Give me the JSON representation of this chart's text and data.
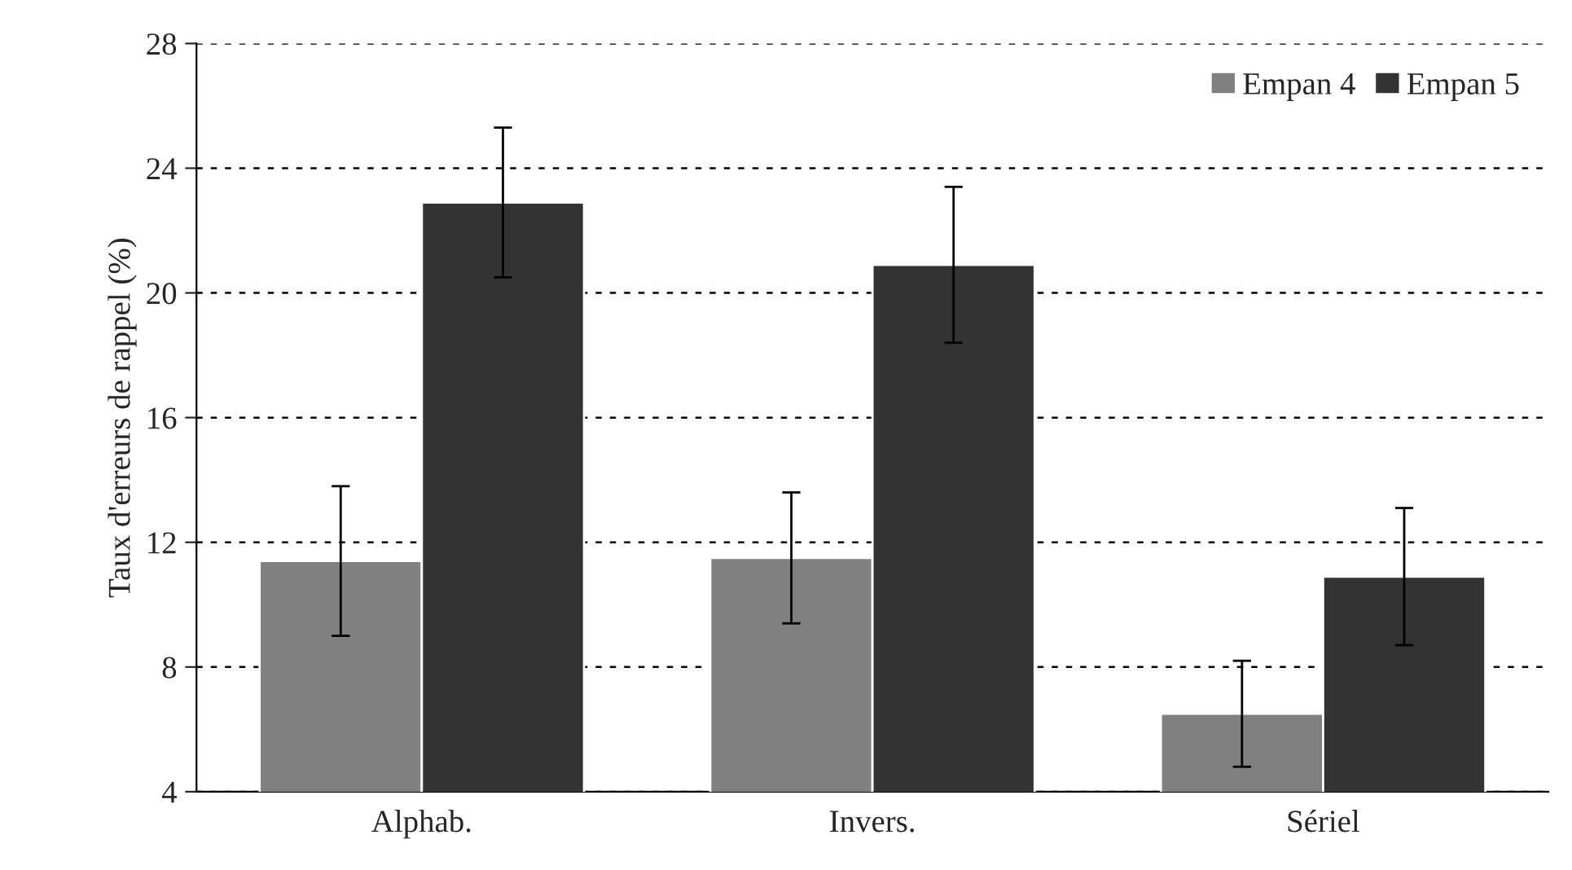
{
  "chart_data": {
    "type": "bar",
    "ylabel": "Taux d'erreurs de rappel (%)",
    "categories": [
      "Alphab.",
      "Invers.",
      "Sériel"
    ],
    "series": [
      {
        "name": "Empan 4",
        "color": "#808080",
        "values": [
          11.4,
          11.5,
          6.5
        ],
        "errors": [
          2.4,
          2.1,
          1.7
        ]
      },
      {
        "name": "Empan 5",
        "color": "#333333",
        "values": [
          22.9,
          20.9,
          10.9
        ],
        "errors": [
          2.4,
          2.5,
          2.2
        ]
      }
    ],
    "ylim": [
      4,
      28
    ],
    "yticks": [
      4,
      8,
      12,
      16,
      20,
      24,
      28
    ],
    "grid": "y",
    "legend": "top right"
  }
}
